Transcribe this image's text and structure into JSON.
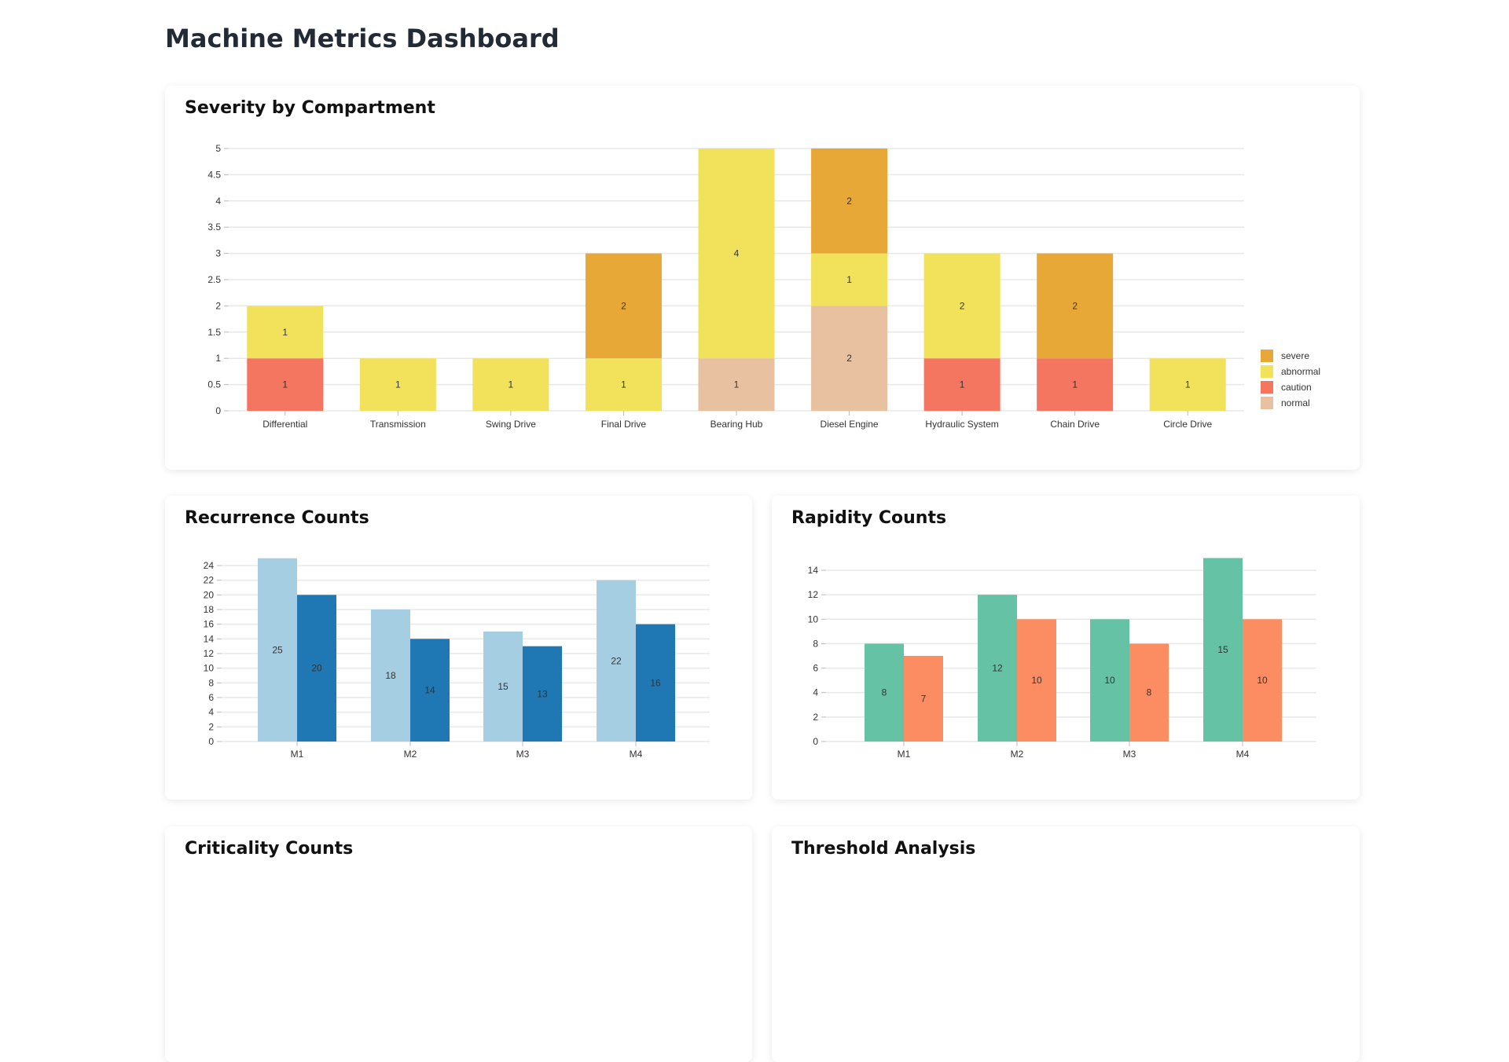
{
  "page_title": "Machine Metrics Dashboard",
  "cards": {
    "severity": "Severity by Compartment",
    "recurrence": "Recurrence Counts",
    "rapidity": "Rapidity Counts",
    "criticality": "Criticality Counts",
    "threshold": "Threshold Analysis"
  },
  "chart_data": [
    {
      "type": "bar",
      "stacked": true,
      "title": "Severity by Compartment",
      "categories": [
        "Differential",
        "Transmission",
        "Swing Drive",
        "Final Drive",
        "Bearing Hub",
        "Diesel Engine",
        "Hydraulic System",
        "Chain Drive",
        "Circle Drive"
      ],
      "series": [
        {
          "name": "normal",
          "color": "#e8c1a0",
          "values": [
            0,
            0,
            0,
            0,
            1,
            2,
            0,
            0,
            0
          ]
        },
        {
          "name": "caution",
          "color": "#f47560",
          "values": [
            1,
            0,
            0,
            0,
            0,
            0,
            1,
            1,
            0
          ]
        },
        {
          "name": "abnormal",
          "color": "#f1e15b",
          "values": [
            1,
            1,
            1,
            1,
            4,
            1,
            2,
            0,
            1
          ]
        },
        {
          "name": "severe",
          "color": "#e8a838",
          "values": [
            0,
            0,
            0,
            2,
            0,
            2,
            0,
            2,
            0
          ]
        }
      ],
      "legend_order": [
        "severe",
        "abnormal",
        "caution",
        "normal"
      ],
      "yticks": [
        0,
        0.5,
        1,
        1.5,
        2,
        2.5,
        3,
        3.5,
        4,
        4.5,
        5
      ],
      "ylim": [
        0,
        5
      ],
      "grid": true,
      "legend": "right"
    },
    {
      "type": "bar",
      "grouped": true,
      "title": "Recurrence Counts",
      "categories": [
        "M1",
        "M2",
        "M3",
        "M4"
      ],
      "series": [
        {
          "color": "#a6cee3",
          "values": [
            25,
            18,
            15,
            22
          ]
        },
        {
          "color": "#1f78b4",
          "values": [
            20,
            14,
            13,
            16
          ]
        }
      ],
      "yticks": [
        0,
        2,
        4,
        6,
        8,
        10,
        12,
        14,
        16,
        18,
        20,
        22,
        24
      ],
      "ylim": [
        0,
        24
      ],
      "grid": true,
      "legend": "right"
    },
    {
      "type": "bar",
      "grouped": true,
      "title": "Rapidity Counts",
      "categories": [
        "M1",
        "M2",
        "M3",
        "M4"
      ],
      "series": [
        {
          "color": "#66c2a5",
          "values": [
            8,
            12,
            10,
            15
          ]
        },
        {
          "color": "#fc8d62",
          "values": [
            7,
            10,
            8,
            10
          ]
        }
      ],
      "yticks": [
        0,
        2,
        4,
        6,
        8,
        10,
        12,
        14
      ],
      "ylim": [
        0,
        14
      ],
      "grid": true,
      "legend": "right"
    }
  ]
}
